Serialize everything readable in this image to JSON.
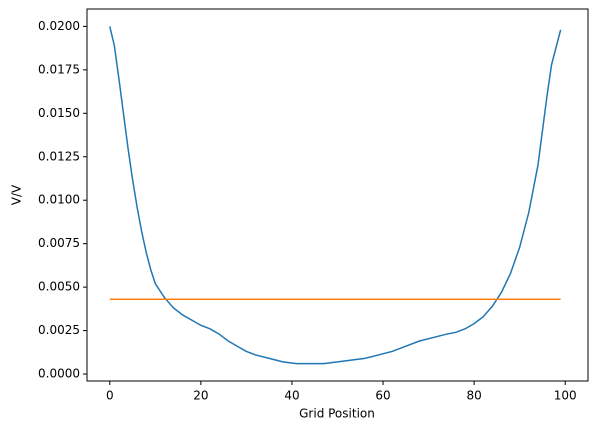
{
  "chart_data": {
    "type": "line",
    "xlabel": "Grid Position",
    "ylabel": "V/V",
    "series": [
      {
        "color": "#1f77b4",
        "x": [
          0,
          1,
          2,
          3,
          4,
          5,
          6,
          7,
          8,
          9,
          10,
          12,
          14,
          16,
          18,
          20,
          22,
          24,
          26,
          28,
          30,
          32,
          35,
          38,
          41,
          44,
          47,
          50,
          53,
          56,
          59,
          62,
          65,
          68,
          71,
          74,
          76,
          78,
          80,
          82,
          84,
          86,
          88,
          90,
          92,
          94,
          96,
          97,
          98,
          99
        ],
        "values": [
          0.02,
          0.0189,
          0.017,
          0.015,
          0.013,
          0.0112,
          0.0096,
          0.0082,
          0.007,
          0.006,
          0.0052,
          0.0044,
          0.0038,
          0.0034,
          0.0031,
          0.0028,
          0.0026,
          0.0023,
          0.0019,
          0.0016,
          0.0013,
          0.0011,
          0.0009,
          0.0007,
          0.0006,
          0.0006,
          0.0006,
          0.0007,
          0.0008,
          0.0009,
          0.0011,
          0.0013,
          0.0016,
          0.0019,
          0.0021,
          0.0023,
          0.0024,
          0.0026,
          0.0029,
          0.0033,
          0.0039,
          0.0047,
          0.0058,
          0.0073,
          0.0093,
          0.012,
          0.016,
          0.0178,
          0.0188,
          0.0198
        ]
      },
      {
        "color": "#ff7f0e",
        "x": [
          0,
          99
        ],
        "values": [
          0.0043,
          0.0043
        ]
      }
    ],
    "xlim": [
      -5,
      105
    ],
    "xticks": [
      0,
      20,
      40,
      60,
      80,
      100
    ],
    "ylim": [
      -0.0004,
      0.021
    ],
    "yticks": [
      {
        "value": 0,
        "label": "0.0000"
      },
      {
        "value": 0.0025,
        "label": "0.0025"
      },
      {
        "value": 0.005,
        "label": "0.0050"
      },
      {
        "value": 0.0075,
        "label": "0.0075"
      },
      {
        "value": 0.01,
        "label": "0.0100"
      },
      {
        "value": 0.0125,
        "label": "0.0125"
      },
      {
        "value": 0.015,
        "label": "0.0150"
      },
      {
        "value": 0.0175,
        "label": "0.0175"
      },
      {
        "value": 0.02,
        "label": "0.0200"
      }
    ]
  }
}
